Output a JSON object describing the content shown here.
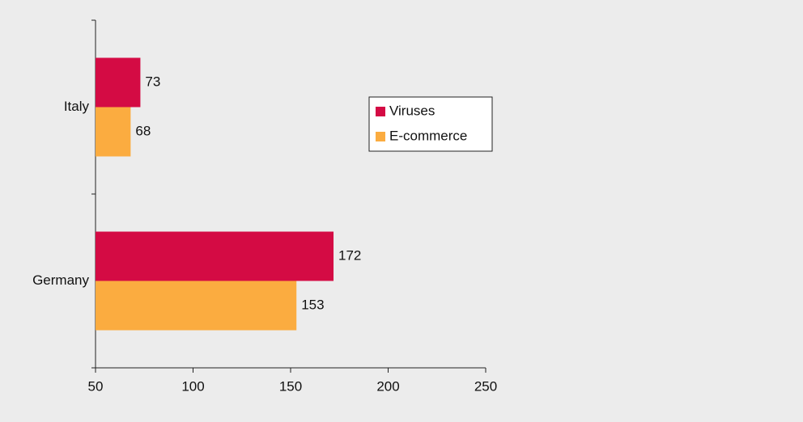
{
  "chart_data": {
    "type": "hbar",
    "categories": [
      "Italy",
      "Germany"
    ],
    "series": [
      {
        "name": "Viruses",
        "color": "#d40b44",
        "values": [
          73,
          172
        ]
      },
      {
        "name": "E-commerce",
        "color": "#fbac40",
        "values": [
          68,
          153
        ]
      }
    ],
    "xlim": [
      50,
      250
    ],
    "xticks": [
      50,
      100,
      150,
      200,
      250
    ],
    "legend": "right"
  }
}
